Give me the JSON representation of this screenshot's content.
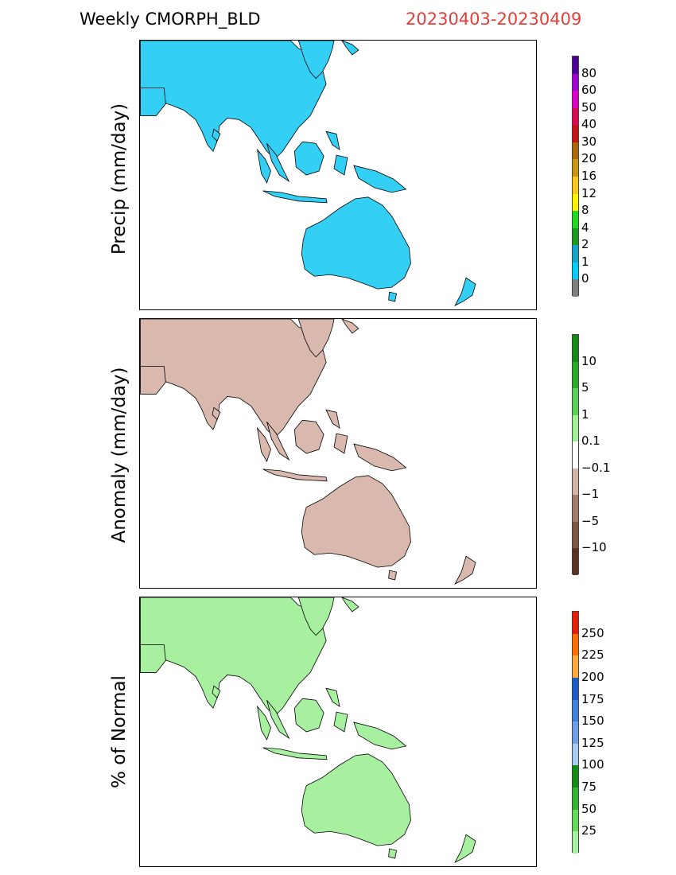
{
  "header": {
    "title_left": "Weekly CMORPH_BLD",
    "title_right": "20230403-20230409",
    "title_right_color": "#e0403a"
  },
  "panels": [
    {
      "ylabel": "Precip (mm/day)",
      "land_color": "#33cff5",
      "colorbar": {
        "colors": [
          "#808080",
          "#00cff7",
          "#14a5c8",
          "#1c9a1c",
          "#22d922",
          "#fff200",
          "#ffc81e",
          "#c89614",
          "#aa6a0a",
          "#c81414",
          "#dc0a50",
          "#dc00c8",
          "#a000d2",
          "#4b0096"
        ],
        "labels": [
          "0",
          "1",
          "2",
          "4",
          "8",
          "12",
          "16",
          "20",
          "30",
          "40",
          "50",
          "60",
          "80"
        ]
      }
    },
    {
      "ylabel": "Anomaly (mm/day)",
      "land_color": "#d9b8ad",
      "colorbar": {
        "colors": [
          "#5a3223",
          "#7e5646",
          "#a57d6e",
          "#d2b4aa",
          "#ffffff",
          "#a0f096",
          "#5ad25a",
          "#28aa28",
          "#148c14"
        ],
        "labels": [
          "−10",
          "−5",
          "−1",
          "−0.1",
          "0.1",
          "1",
          "5",
          "10"
        ]
      }
    },
    {
      "ylabel": "% of Normal",
      "land_color": "#a7f0a0",
      "colorbar": {
        "colors": [
          "#a7f0a0",
          "#64dc5a",
          "#32b432",
          "#168c16",
          "#a8cdf5",
          "#6ea0e6",
          "#3c82dc",
          "#1e5ac8",
          "#ffaa3c",
          "#ff6e00",
          "#e61e0a"
        ],
        "labels": [
          "25",
          "50",
          "75",
          "100",
          "125",
          "150",
          "175",
          "200",
          "225",
          "250"
        ]
      }
    }
  ]
}
